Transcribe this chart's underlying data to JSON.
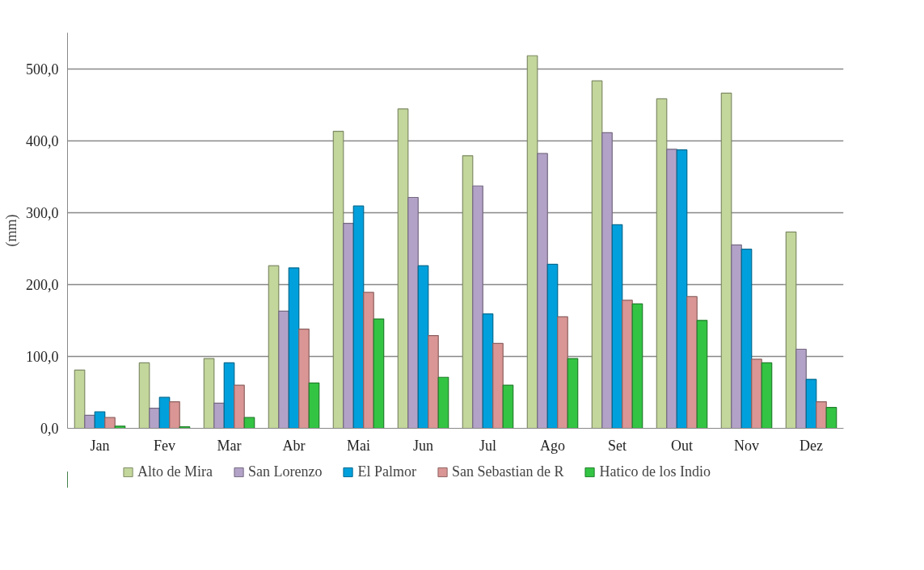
{
  "chart_data": {
    "type": "bar",
    "ylabel": "(mm)",
    "categories": [
      "Jan",
      "Fev",
      "Mar",
      "Abr",
      "Mai",
      "Jun",
      "Jul",
      "Ago",
      "Set",
      "Out",
      "Nov",
      "Dez"
    ],
    "series": [
      {
        "name": "Alto de Mira",
        "color": "#c3d69b",
        "values": [
          81,
          91,
          97,
          226,
          413,
          444,
          379,
          518,
          483,
          458,
          466,
          273
        ]
      },
      {
        "name": "San Lorenzo",
        "color": "#b3a2c7",
        "values": [
          18,
          28,
          35,
          163,
          285,
          321,
          337,
          382,
          411,
          388,
          255,
          110
        ]
      },
      {
        "name": "El Palmor",
        "color": "#00a0dc",
        "values": [
          23,
          43,
          91,
          223,
          309,
          226,
          159,
          228,
          283,
          387,
          249,
          68
        ]
      },
      {
        "name": "San Sebastian de R",
        "color": "#d99694",
        "values": [
          15,
          37,
          60,
          138,
          189,
          129,
          118,
          155,
          178,
          183,
          96,
          37
        ]
      },
      {
        "name": "Hatico de los Indio",
        "color": "#33c443",
        "values": [
          3,
          2,
          15,
          63,
          152,
          71,
          60,
          97,
          173,
          150,
          91,
          29
        ]
      }
    ],
    "ylim": [
      0,
      550
    ],
    "yticks": [
      {
        "value": 0,
        "label": "0,0"
      },
      {
        "value": 100,
        "label": "100,0"
      },
      {
        "value": 200,
        "label": "200,0"
      },
      {
        "value": 300,
        "label": "300,0"
      },
      {
        "value": 400,
        "label": "400,0"
      },
      {
        "value": 500,
        "label": "500,0"
      }
    ],
    "grid": "y",
    "legend": "bottom"
  }
}
